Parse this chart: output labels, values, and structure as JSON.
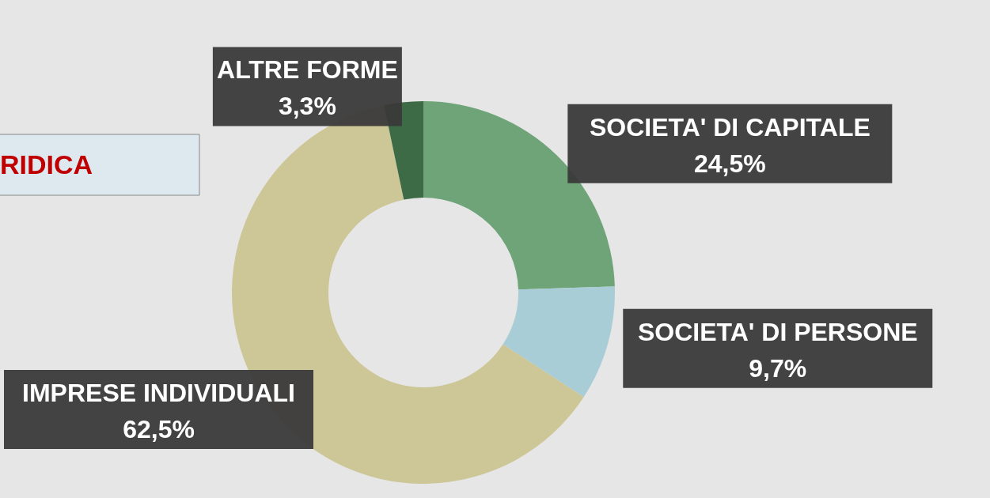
{
  "chart_data": {
    "type": "donut",
    "title": "RIDICA",
    "categories": [
      "SOCIETA' DI CAPITALE",
      "SOCIETA' DI PERSONE",
      "IMPRESE INDIVIDUALI",
      "ALTRE FORME"
    ],
    "values": [
      24.5,
      9.7,
      62.5,
      3.3
    ],
    "colors": [
      "#6fa478",
      "#a8cdd6",
      "#cdc696",
      "#3d6b45"
    ],
    "value_labels": [
      "24,5%",
      "9,7%",
      "62,5%",
      "3,3%"
    ]
  }
}
